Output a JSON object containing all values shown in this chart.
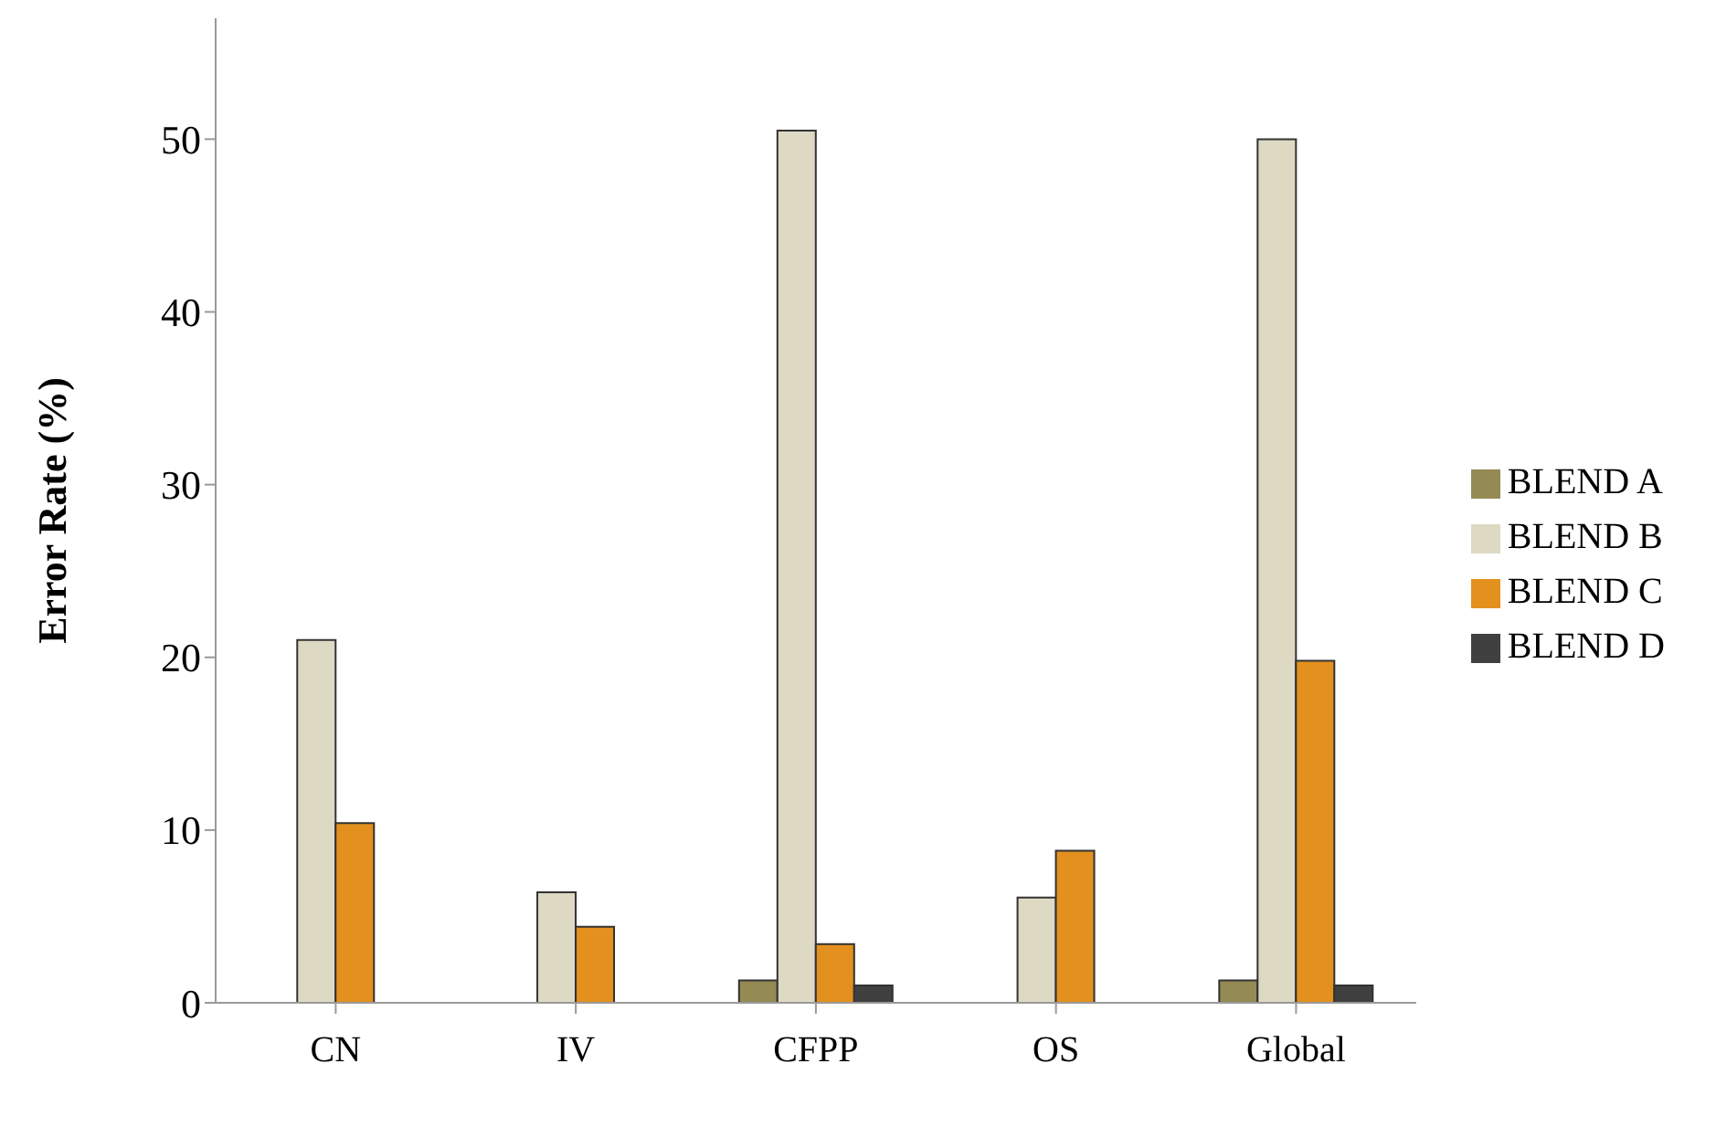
{
  "chart_data": {
    "type": "bar",
    "ylabel": "Error Rate (%)",
    "categories": [
      "CN",
      "IV",
      "CFPP",
      "OS",
      "Global"
    ],
    "series": [
      {
        "name": "BLEND A",
        "color": "#948a54",
        "values": [
          null,
          null,
          1.3,
          null,
          1.3
        ]
      },
      {
        "name": "BLEND B",
        "color": "#ddd9c3",
        "values": [
          21,
          6.4,
          50.5,
          6.1,
          50
        ]
      },
      {
        "name": "BLEND C",
        "color": "#e3901e",
        "values": [
          10.4,
          4.4,
          3.4,
          8.8,
          19.8
        ]
      },
      {
        "name": "BLEND D",
        "color": "#404040",
        "values": [
          null,
          null,
          1,
          null,
          1
        ]
      }
    ],
    "ylim": [
      0,
      57
    ],
    "yticks": [
      0,
      10,
      20,
      30,
      40,
      50
    ],
    "grid": false,
    "legend": "right"
  }
}
